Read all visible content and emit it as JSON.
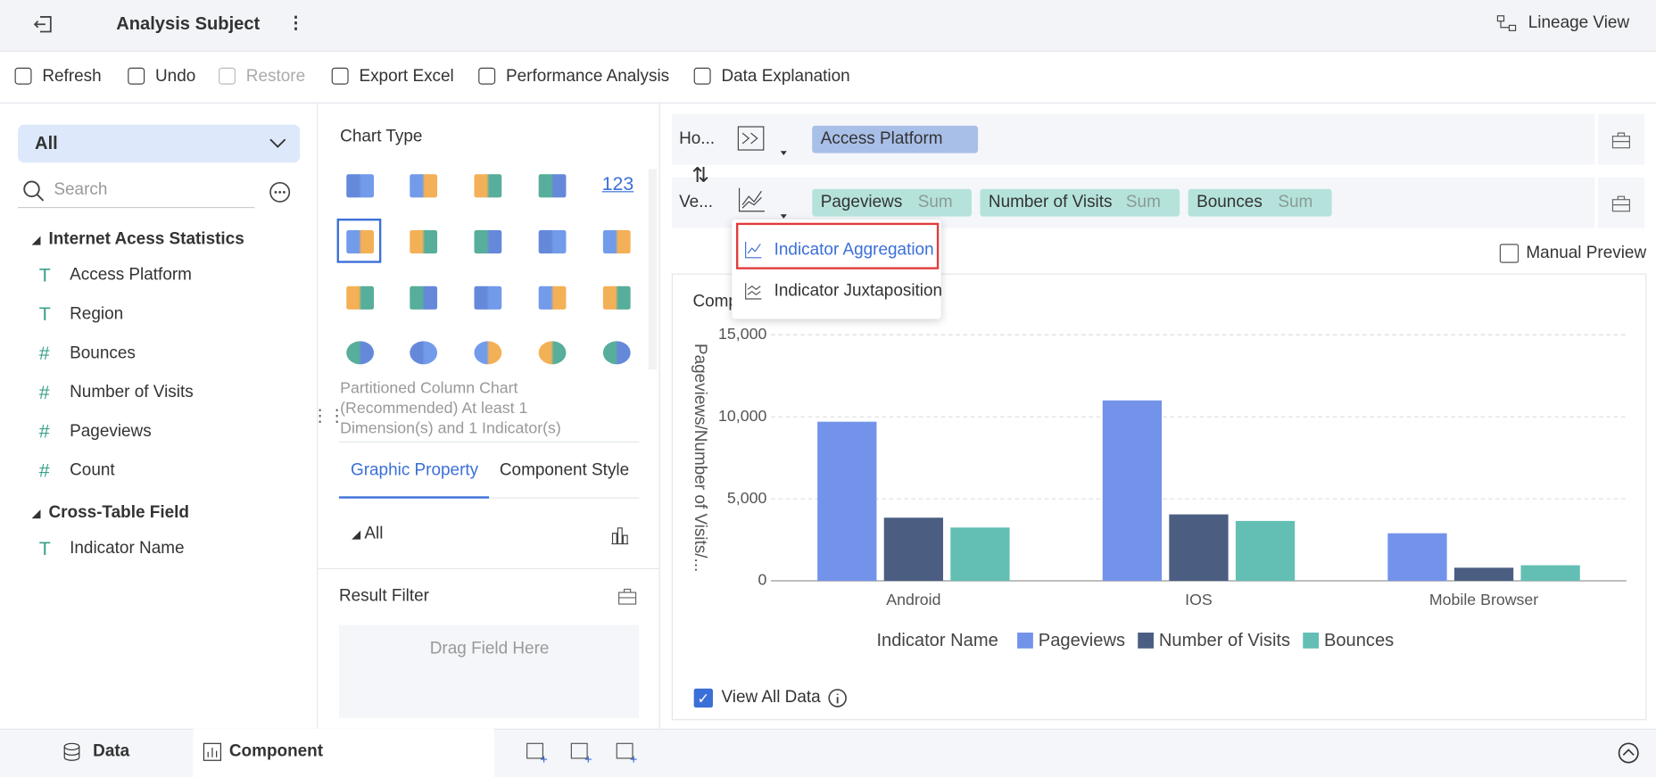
{
  "header": {
    "title": "Analysis Subject",
    "lineage": "Lineage View"
  },
  "toolbar": [
    "Refresh",
    "Undo",
    "Restore",
    "Export Excel",
    "Performance Analysis",
    "Data Explanation"
  ],
  "left": {
    "filter": "All",
    "search": "Search",
    "groups": [
      {
        "name": "Internet Acess Statistics",
        "fields": [
          "Access Platform",
          "Region",
          "Bounces",
          "Number of Visits",
          "Pageviews",
          "Count"
        ]
      },
      {
        "name": "Cross-Table Field",
        "fields": [
          "Indicator Name"
        ]
      }
    ]
  },
  "middle": {
    "chart_type_label": "Chart Type",
    "number_icon": "123",
    "hint": "Partitioned Column Chart (Recommended) At least 1 Dimension(s) and 1 Indicator(s)",
    "tabs": [
      "Graphic Property",
      "Component Style"
    ],
    "all": "All",
    "result_filter": "Result Filter",
    "drag": "Drag Field Here"
  },
  "shelf": {
    "horizontal": "Ho...",
    "vertical": "Ve...",
    "h_fields": [
      "Access Platform"
    ],
    "v_fields": [
      {
        "name": "Pageviews",
        "agg": "Sum"
      },
      {
        "name": "Number of Visits",
        "agg": "Sum"
      },
      {
        "name": "Bounces",
        "agg": "Sum"
      }
    ]
  },
  "dropdown": [
    "Indicator Aggregation",
    "Indicator Juxtaposition"
  ],
  "manual_preview": "Manual Preview",
  "view_all": "View All Data",
  "bottom_tabs": [
    "Data",
    "Component"
  ],
  "chart_data": {
    "type": "bar",
    "title": "Comp",
    "y_label": "Pageviews/Number of Visits/...",
    "legend_title": "Indicator Name",
    "categories": [
      "Android",
      "IOS",
      "Mobile Browser"
    ],
    "series": [
      {
        "name": "Pageviews",
        "color": "#7393ea",
        "values": [
          9700,
          11000,
          2900
        ]
      },
      {
        "name": "Number of Visits",
        "color": "#4b5e82",
        "values": [
          3850,
          4050,
          800
        ]
      },
      {
        "name": "Bounces",
        "color": "#63bfb3",
        "values": [
          3250,
          3650,
          950
        ]
      }
    ],
    "ylim": [
      0,
      15000
    ],
    "yticks": [
      0,
      {
        "value": 5000,
        "label": "5,000"
      },
      {
        "value": 10000,
        "label": "10,000"
      },
      {
        "value": 15000,
        "label": "15,000"
      }
    ],
    "grid": true
  }
}
